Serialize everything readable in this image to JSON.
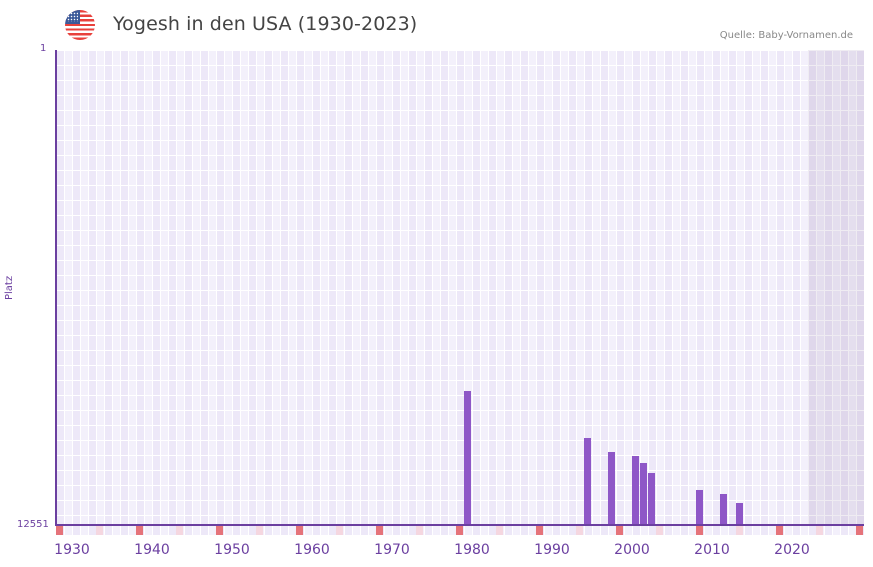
{
  "header": {
    "flag_icon": "us-flag-icon",
    "title": "Yogesh in den USA (1930-2023)",
    "source": "Quelle: Baby-Vornamen.de"
  },
  "colors": {
    "bar": "#8e57c7",
    "axis": "#6b3fa0",
    "decade_marker": "#e5737a",
    "half_decade_marker": "#f5d7e0",
    "grid_dark": "#ede8f8",
    "grid_light": "#f3f0fb"
  },
  "chart_data": {
    "type": "bar",
    "title": "Yogesh in den USA (1930-2023)",
    "xlabel": "",
    "ylabel": "Platz",
    "y_inverted": true,
    "ylim": [
      1,
      12551
    ],
    "y_ticks": [
      "1",
      "12551"
    ],
    "x_ticks": [
      "1930",
      "1940",
      "1950",
      "1960",
      "1970",
      "1980",
      "1990",
      "2000",
      "2010",
      "2020"
    ],
    "x_range": [
      1928,
      2028
    ],
    "projection_shaded_from": 2022,
    "grid": true,
    "categories": [
      "1979",
      "1994",
      "1997",
      "2000",
      "2001",
      "2002",
      "2008",
      "2011",
      "2013"
    ],
    "values": [
      9010,
      10252,
      10622,
      10728,
      10913,
      11177,
      11626,
      11732,
      11970
    ]
  },
  "axis": {
    "y_top": "1",
    "y_bottom": "12551",
    "y_name": "Platz",
    "x_labels": [
      "1930",
      "1940",
      "1950",
      "1960",
      "1970",
      "1980",
      "1990",
      "2000",
      "2010",
      "2020"
    ]
  }
}
